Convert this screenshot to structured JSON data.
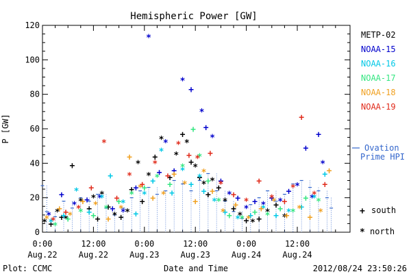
{
  "chart_data": {
    "type": "scatter",
    "title": "Hemispheric Power [GW]",
    "xlabel": "Date and Time",
    "ylabel": "P [GW]",
    "xlim_hours": [
      0,
      60
    ],
    "ylim": [
      0,
      120
    ],
    "y_ticks": [
      0,
      20,
      40,
      60,
      80,
      100,
      120
    ],
    "x_ticks": [
      {
        "hour": 0,
        "time": "0:00",
        "date": "Aug.22"
      },
      {
        "hour": 12,
        "time": "12:00",
        "date": "Aug.22"
      },
      {
        "hour": 24,
        "time": "0:00",
        "date": "Aug.23"
      },
      {
        "hour": 36,
        "time": "12:00",
        "date": "Aug.23"
      },
      {
        "hour": 48,
        "time": "0:00",
        "date": "Aug.24"
      },
      {
        "hour": 60,
        "time": "12:00",
        "date": "Aug.24"
      }
    ],
    "grid": false,
    "legend_position": "right",
    "series": [
      {
        "name": "METP-02",
        "color": "#000000",
        "points": [
          [
            0.5,
            6
          ],
          [
            2,
            5
          ],
          [
            3.5,
            12
          ],
          [
            4.5,
            9
          ],
          [
            5.5,
            8
          ],
          [
            7,
            39
          ],
          [
            9,
            18
          ],
          [
            11,
            14
          ],
          [
            12,
            20
          ],
          [
            13,
            8
          ],
          [
            14,
            22
          ],
          [
            15.5,
            15
          ],
          [
            17,
            10
          ],
          [
            18.5,
            9
          ],
          [
            20,
            12
          ],
          [
            21,
            25
          ],
          [
            22.5,
            40
          ],
          [
            23.5,
            18
          ],
          [
            25,
            33
          ],
          [
            26.5,
            44
          ],
          [
            28,
            54
          ],
          [
            30,
            32
          ],
          [
            31.5,
            45
          ],
          [
            33,
            57
          ],
          [
            34,
            52
          ],
          [
            35,
            41
          ],
          [
            36,
            38
          ],
          [
            37,
            32
          ],
          [
            38,
            28
          ],
          [
            39,
            22
          ],
          [
            40,
            30
          ],
          [
            41.5,
            26
          ],
          [
            43,
            18
          ],
          [
            45,
            14
          ],
          [
            46.5,
            10
          ],
          [
            48,
            7
          ],
          [
            49.5,
            6
          ],
          [
            51,
            8
          ],
          [
            53,
            12
          ],
          [
            55,
            16
          ],
          [
            57,
            9
          ]
        ]
      },
      {
        "name": "NOAA-15",
        "color": "#0000cc",
        "points": [
          [
            1.5,
            10
          ],
          [
            4.5,
            22
          ],
          [
            7.5,
            16
          ],
          [
            10.5,
            19
          ],
          [
            13.5,
            20
          ],
          [
            16.5,
            14
          ],
          [
            19,
            12
          ],
          [
            22,
            26
          ],
          [
            25,
            113
          ],
          [
            27.5,
            35
          ],
          [
            29,
            52
          ],
          [
            31,
            36
          ],
          [
            33,
            88
          ],
          [
            35,
            83
          ],
          [
            37.5,
            70
          ],
          [
            38.5,
            61
          ],
          [
            40,
            55
          ],
          [
            42,
            30
          ],
          [
            44,
            22
          ],
          [
            46,
            20
          ],
          [
            48,
            14
          ],
          [
            50,
            18
          ],
          [
            52,
            16
          ],
          [
            54,
            20
          ],
          [
            56,
            18
          ],
          [
            58,
            24
          ],
          [
            60,
            27
          ],
          [
            62,
            49
          ],
          [
            63.5,
            20
          ],
          [
            65,
            57
          ],
          [
            66,
            40
          ]
        ]
      },
      {
        "name": "NOAA-16",
        "color": "#00c8e6",
        "points": [
          [
            2,
            6
          ],
          [
            5,
            10
          ],
          [
            8,
            24
          ],
          [
            11,
            12
          ],
          [
            14,
            20
          ],
          [
            16,
            33
          ],
          [
            19,
            17
          ],
          [
            22,
            11
          ],
          [
            24,
            22
          ],
          [
            26,
            30
          ],
          [
            28,
            47
          ],
          [
            30.5,
            23
          ],
          [
            33,
            36
          ],
          [
            35,
            28
          ],
          [
            37,
            32
          ],
          [
            38,
            24
          ],
          [
            40.5,
            18
          ],
          [
            43,
            12
          ],
          [
            46,
            8
          ],
          [
            49,
            10
          ],
          [
            52,
            14
          ],
          [
            55,
            10
          ],
          [
            58,
            12
          ],
          [
            61,
            15
          ],
          [
            64,
            20
          ],
          [
            66.5,
            34
          ]
        ]
      },
      {
        "name": "NOAA-17",
        "color": "#33e680",
        "points": [
          [
            3,
            4
          ],
          [
            6,
            8
          ],
          [
            9,
            12
          ],
          [
            12,
            10
          ],
          [
            15,
            14
          ],
          [
            18,
            18
          ],
          [
            21,
            22
          ],
          [
            24,
            26
          ],
          [
            27,
            32
          ],
          [
            30,
            28
          ],
          [
            33,
            38
          ],
          [
            35.5,
            60
          ],
          [
            37,
            44
          ],
          [
            39,
            30
          ],
          [
            41.5,
            18
          ],
          [
            44,
            10
          ],
          [
            47,
            8
          ],
          [
            50,
            12
          ],
          [
            53,
            10
          ],
          [
            56,
            14
          ],
          [
            59,
            12
          ],
          [
            62,
            20
          ],
          [
            65,
            18
          ]
        ]
      },
      {
        "name": "NOAA-18",
        "color": "#f0a020",
        "points": [
          [
            1,
            8
          ],
          [
            4,
            14
          ],
          [
            6.5,
            10
          ],
          [
            9.5,
            18
          ],
          [
            12.5,
            16
          ],
          [
            15.5,
            8
          ],
          [
            18.5,
            14
          ],
          [
            20.5,
            44
          ],
          [
            23,
            26
          ],
          [
            26,
            20
          ],
          [
            28.5,
            22
          ],
          [
            31,
            34
          ],
          [
            33.5,
            28
          ],
          [
            36,
            18
          ],
          [
            38,
            35
          ],
          [
            40,
            24
          ],
          [
            42.5,
            12
          ],
          [
            45.5,
            16
          ],
          [
            48.5,
            8
          ],
          [
            51.5,
            14
          ],
          [
            54.5,
            18
          ],
          [
            57.5,
            10
          ],
          [
            60.5,
            14
          ],
          [
            63,
            9
          ],
          [
            65.5,
            12
          ],
          [
            67.5,
            36
          ]
        ]
      },
      {
        "name": "NOAA-19",
        "color": "#e02a1a",
        "points": [
          [
            2.5,
            7
          ],
          [
            5.5,
            12
          ],
          [
            8.5,
            14
          ],
          [
            11.5,
            26
          ],
          [
            14.5,
            52
          ],
          [
            17.5,
            20
          ],
          [
            20.5,
            33
          ],
          [
            23.5,
            28
          ],
          [
            26.5,
            40
          ],
          [
            29.5,
            33
          ],
          [
            32,
            51
          ],
          [
            34.5,
            45
          ],
          [
            36.5,
            43
          ],
          [
            39.5,
            46
          ],
          [
            42,
            28
          ],
          [
            45,
            22
          ],
          [
            48,
            18
          ],
          [
            51,
            30
          ],
          [
            54,
            20
          ],
          [
            57,
            18
          ],
          [
            59,
            26
          ],
          [
            61,
            67
          ],
          [
            64,
            22
          ],
          [
            66.5,
            28
          ]
        ]
      }
    ],
    "ovation": {
      "name": "Ovation Prime HPI",
      "color": "#3366cc",
      "steps": [
        [
          0,
          27
        ],
        [
          1,
          12
        ],
        [
          3,
          9
        ],
        [
          5,
          18
        ],
        [
          7,
          14
        ],
        [
          9,
          20
        ],
        [
          11,
          18
        ],
        [
          13,
          22
        ],
        [
          15,
          14
        ],
        [
          17,
          10
        ],
        [
          19,
          14
        ],
        [
          21,
          20
        ],
        [
          23,
          24
        ],
        [
          25,
          26
        ],
        [
          27,
          22
        ],
        [
          29,
          24
        ],
        [
          31,
          30
        ],
        [
          33,
          28
        ],
        [
          35,
          24
        ],
        [
          37,
          30
        ],
        [
          39,
          34
        ],
        [
          41,
          24
        ],
        [
          43,
          18
        ],
        [
          45,
          12
        ],
        [
          47,
          8
        ],
        [
          49,
          16
        ],
        [
          51,
          20
        ],
        [
          53,
          24
        ],
        [
          55,
          18
        ],
        [
          57,
          22
        ],
        [
          59,
          28
        ],
        [
          61,
          30
        ],
        [
          63,
          26
        ],
        [
          65,
          24
        ],
        [
          67,
          20
        ],
        [
          68,
          14
        ]
      ]
    }
  },
  "legend": {
    "entries": [
      {
        "label": "METP-02",
        "color": "#000000"
      },
      {
        "label": "NOAA-15",
        "color": "#0000cc"
      },
      {
        "label": "NOAA-16",
        "color": "#00c8e6"
      },
      {
        "label": "NOAA-17",
        "color": "#33e680"
      },
      {
        "label": "NOAA-18",
        "color": "#f0a020"
      },
      {
        "label": "NOAA-19",
        "color": "#e02a1a"
      }
    ],
    "ovation_line1": "Ovation",
    "ovation_line2": "Prime HPI",
    "south_label": "south",
    "north_label": "north",
    "south_symbol": "+",
    "north_symbol": "*"
  },
  "footer": {
    "left": "Plot: CCMC",
    "right": "2012/08/24 23:50:26"
  }
}
